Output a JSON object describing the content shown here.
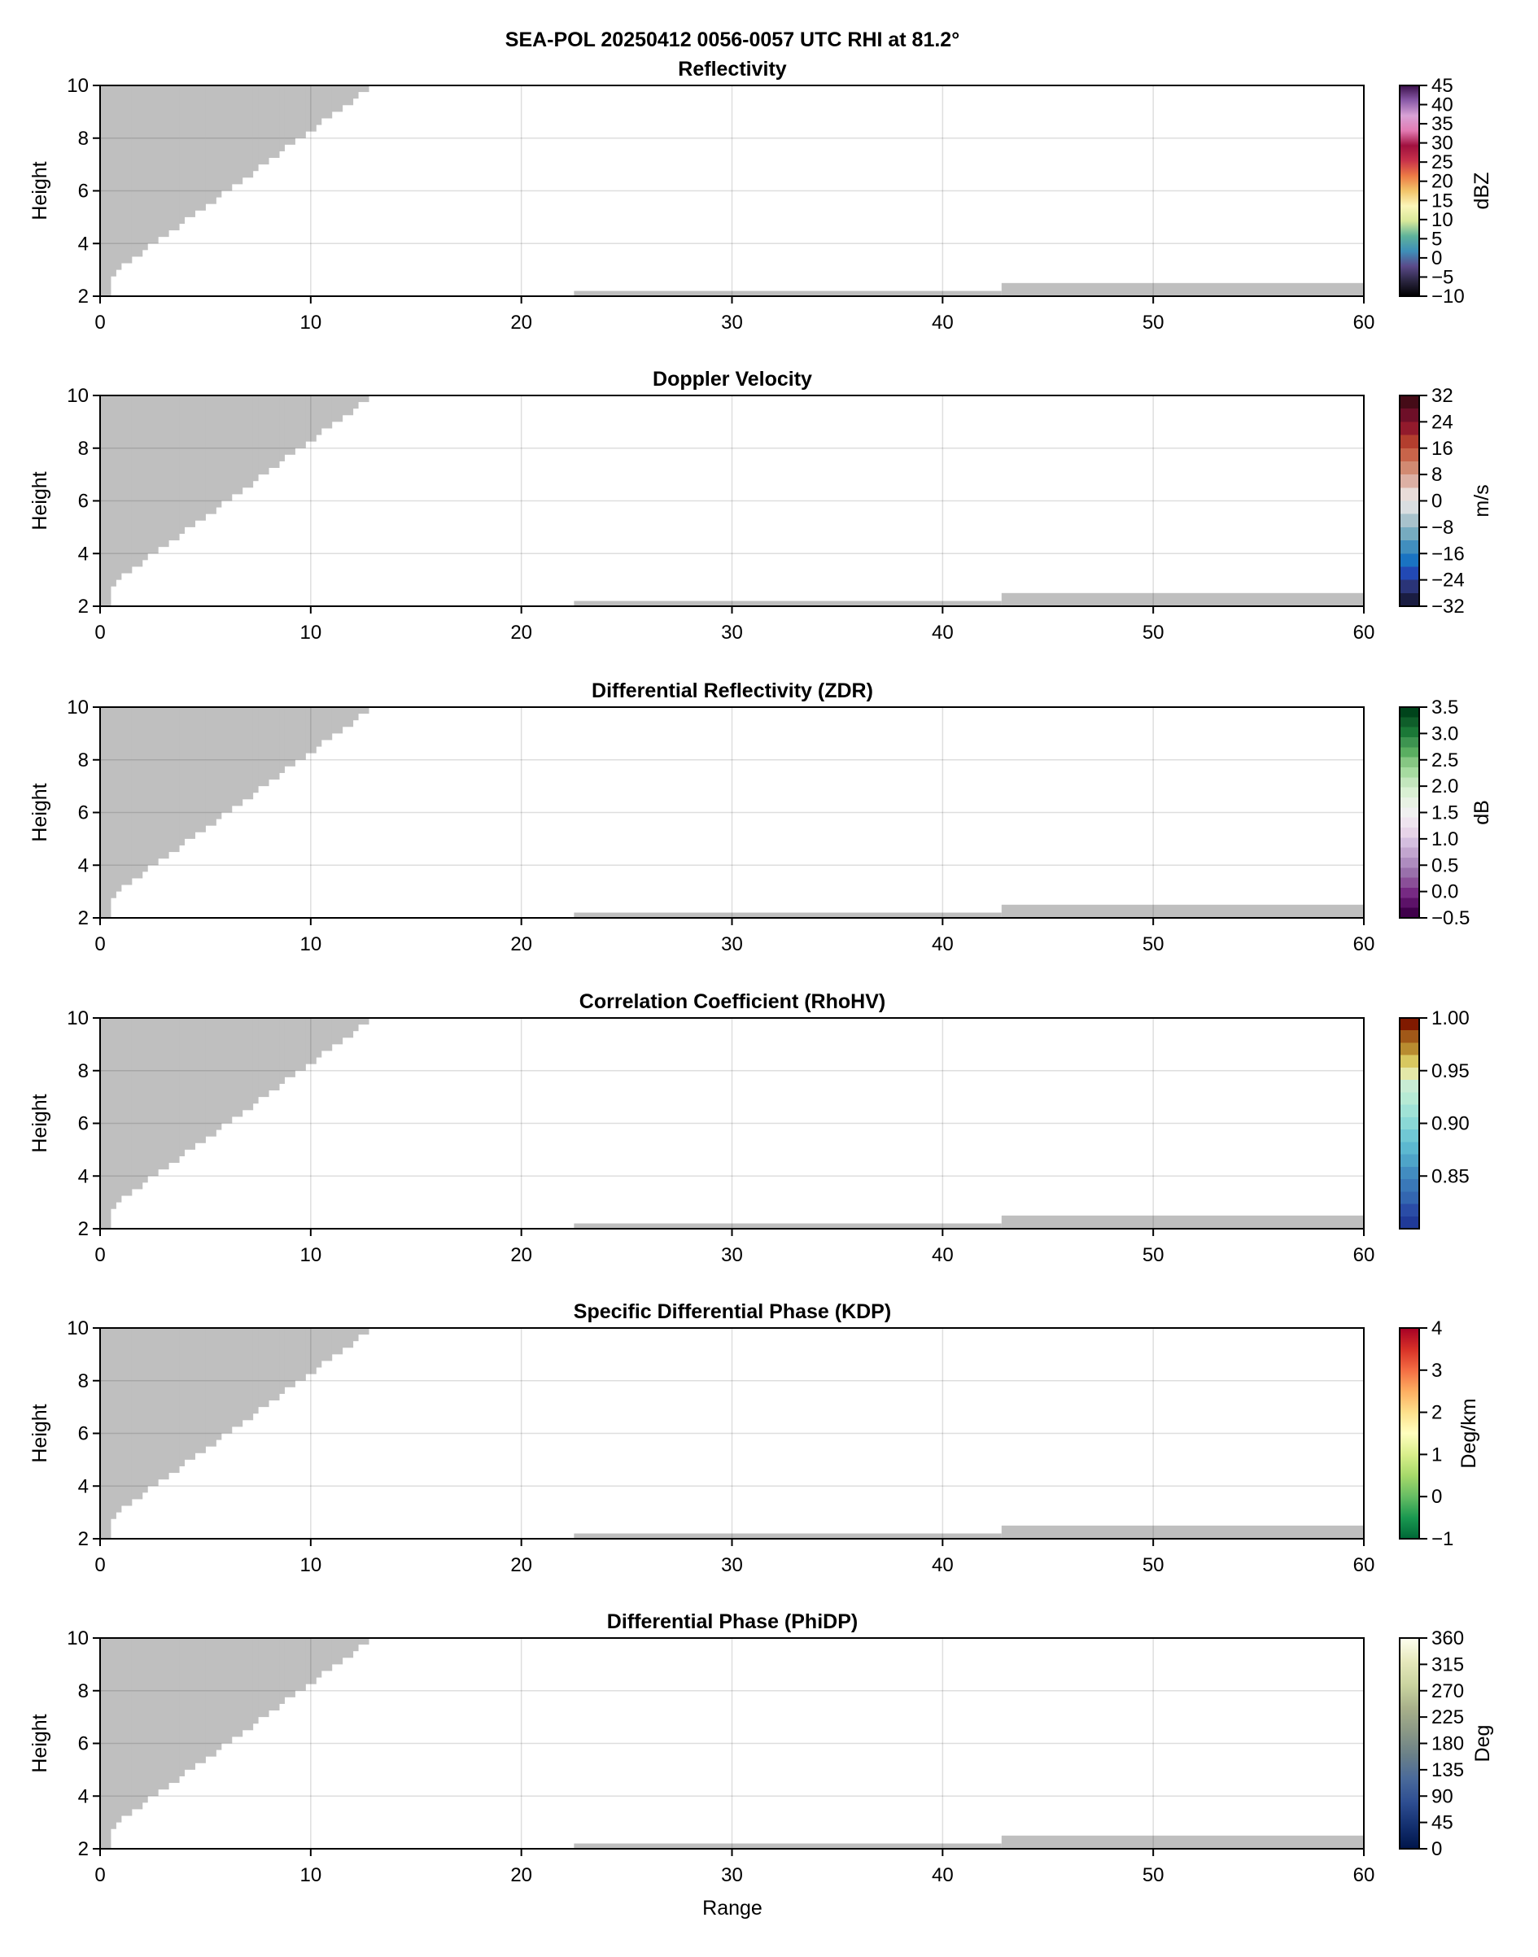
{
  "suptitle": "SEA-POL 20250412 0056-0057 UTC RHI at 81.2°",
  "colors": {
    "no_data_mask": "#bfbfbf",
    "grid": "#dcdcdc",
    "axes": "#000000"
  },
  "chart_data": [
    {
      "type": "heatmap",
      "title": "Reflectivity",
      "xlabel": "",
      "ylabel": "Height",
      "xlim": [
        0,
        60
      ],
      "ylim": [
        2,
        10
      ],
      "xticks": [
        0,
        10,
        20,
        30,
        40,
        50,
        60
      ],
      "yticks": [
        2,
        4,
        6,
        8,
        10
      ],
      "grid": true,
      "colorbar": {
        "label": "dBZ",
        "vmin": -10,
        "vmax": 45,
        "ticks": [
          -10,
          -5,
          0,
          5,
          10,
          15,
          20,
          25,
          30,
          35,
          40,
          45
        ],
        "tick_labels": [
          "−10",
          "−5",
          "0",
          "5",
          "10",
          "15",
          "20",
          "25",
          "30",
          "35",
          "40",
          "45"
        ],
        "colors": [
          "#000000",
          "#2a2540",
          "#5a4a8a",
          "#3e8fb8",
          "#5fb39a",
          "#d8e89a",
          "#fbf6b8",
          "#f2c46a",
          "#ec7a45",
          "#c8324a",
          "#a0103e",
          "#e27bb3",
          "#d8a2d6",
          "#8a5aa8",
          "#3a0f4a"
        ],
        "discrete": false
      }
    },
    {
      "type": "heatmap",
      "title": "Doppler Velocity",
      "xlabel": "",
      "ylabel": "Height",
      "xlim": [
        0,
        60
      ],
      "ylim": [
        2,
        10
      ],
      "xticks": [
        0,
        10,
        20,
        30,
        40,
        50,
        60
      ],
      "yticks": [
        2,
        4,
        6,
        8,
        10
      ],
      "grid": true,
      "colorbar": {
        "label": "m/s",
        "vmin": -32,
        "vmax": 32,
        "ticks": [
          -32,
          -24,
          -16,
          -8,
          0,
          8,
          16,
          24,
          32
        ],
        "tick_labels": [
          "−32",
          "−24",
          "−16",
          "−8",
          "0",
          "8",
          "16",
          "24",
          "32"
        ],
        "colors": [
          "#1a1d42",
          "#2a3478",
          "#2249b4",
          "#1a73c2",
          "#418ebe",
          "#76abc0",
          "#a8c2cc",
          "#d9dde0",
          "#e9dcd8",
          "#ddb0a4",
          "#d28a72",
          "#c8644a",
          "#b33e2e",
          "#921a2c",
          "#6e0f28",
          "#450b17"
        ],
        "discrete": true
      }
    },
    {
      "type": "heatmap",
      "title": "Differential Reflectivity (ZDR)",
      "xlabel": "",
      "ylabel": "Height",
      "xlim": [
        0,
        60
      ],
      "ylim": [
        2,
        10
      ],
      "xticks": [
        0,
        10,
        20,
        30,
        40,
        50,
        60
      ],
      "yticks": [
        2,
        4,
        6,
        8,
        10
      ],
      "grid": true,
      "colorbar": {
        "label": "dB",
        "vmin": -0.5,
        "vmax": 3.5,
        "ticks": [
          -0.5,
          0,
          0.5,
          1,
          1.5,
          2,
          2.5,
          3,
          3.5
        ],
        "tick_labels": [
          "−0.5",
          "0.0",
          "0.5",
          "1.0",
          "1.5",
          "2.0",
          "2.5",
          "3.0",
          "3.5"
        ],
        "colors": [
          "#40004b",
          "#5c1268",
          "#762a83",
          "#8a4f98",
          "#9970ab",
          "#ae8cbf",
          "#c2a5cf",
          "#d4bedf",
          "#e7d4e8",
          "#efe4ef",
          "#f0f0f0",
          "#e8f2e4",
          "#d9f0d3",
          "#c3e6bd",
          "#a6dba0",
          "#86c783",
          "#5aae61",
          "#3d9450",
          "#1b7837",
          "#0f5e2a",
          "#00441b"
        ],
        "discrete": true
      }
    },
    {
      "type": "heatmap",
      "title": "Correlation Coefficient (RhoHV)",
      "xlabel": "",
      "ylabel": "Height",
      "xlim": [
        0,
        60
      ],
      "ylim": [
        2,
        10
      ],
      "xticks": [
        0,
        10,
        20,
        30,
        40,
        50,
        60
      ],
      "yticks": [
        2,
        4,
        6,
        8,
        10
      ],
      "grid": true,
      "colorbar": {
        "label": "",
        "vmin": 0.8,
        "vmax": 1.0,
        "ticks": [
          0.85,
          0.9,
          0.95,
          1.0
        ],
        "tick_labels": [
          "0.85",
          "0.90",
          "0.95",
          "1.00"
        ],
        "colors": [
          "#203a98",
          "#2a4ca6",
          "#3366b0",
          "#3a78b8",
          "#428cc0",
          "#4ea4c8",
          "#5cb8d0",
          "#70c8d4",
          "#8ad8d6",
          "#a0e2d6",
          "#b6ead4",
          "#c8ecd4",
          "#e4e8a8",
          "#d8c860",
          "#b88c30",
          "#a05818",
          "#801a00"
        ],
        "discrete": true
      }
    },
    {
      "type": "heatmap",
      "title": "Specific Differential Phase (KDP)",
      "xlabel": "",
      "ylabel": "Height",
      "xlim": [
        0,
        60
      ],
      "ylim": [
        2,
        10
      ],
      "xticks": [
        0,
        10,
        20,
        30,
        40,
        50,
        60
      ],
      "yticks": [
        2,
        4,
        6,
        8,
        10
      ],
      "grid": true,
      "colorbar": {
        "label": "Deg/km",
        "vmin": -1,
        "vmax": 4,
        "ticks": [
          -1,
          0,
          1,
          2,
          3,
          4
        ],
        "tick_labels": [
          "−1",
          "0",
          "1",
          "2",
          "3",
          "4"
        ],
        "colors": [
          "#006837",
          "#1a9850",
          "#66bd63",
          "#a6d96a",
          "#d9ef8b",
          "#ffffbf",
          "#fee08b",
          "#fdae61",
          "#f46d43",
          "#d73027",
          "#a50026"
        ],
        "discrete": false
      }
    },
    {
      "type": "heatmap",
      "title": "Differential Phase (PhiDP)",
      "xlabel": "Range",
      "ylabel": "Height",
      "xlim": [
        0,
        60
      ],
      "ylim": [
        2,
        10
      ],
      "xticks": [
        0,
        10,
        20,
        30,
        40,
        50,
        60
      ],
      "yticks": [
        2,
        4,
        6,
        8,
        10
      ],
      "grid": true,
      "colorbar": {
        "label": "Deg",
        "vmin": 0,
        "vmax": 360,
        "ticks": [
          0,
          45,
          90,
          135,
          180,
          225,
          270,
          315,
          360
        ],
        "tick_labels": [
          "0",
          "45",
          "90",
          "135",
          "180",
          "225",
          "270",
          "315",
          "360"
        ],
        "colors": [
          "#00154a",
          "#143070",
          "#2e4e92",
          "#4a6a9a",
          "#6a8088",
          "#8a9886",
          "#a8b08a",
          "#cad4a0",
          "#e6e8bc",
          "#fffff0"
        ],
        "discrete": false
      }
    }
  ],
  "no_data": {
    "staircase_range_height": [
      [
        0,
        2
      ],
      [
        0.5,
        2.75
      ],
      [
        0.75,
        3
      ],
      [
        1,
        3.25
      ],
      [
        1.5,
        3.5
      ],
      [
        2,
        3.75
      ],
      [
        2.25,
        4
      ],
      [
        2.75,
        4.25
      ],
      [
        3.25,
        4.5
      ],
      [
        3.75,
        4.75
      ],
      [
        4,
        5
      ],
      [
        4.5,
        5.25
      ],
      [
        5,
        5.5
      ],
      [
        5.5,
        5.75
      ],
      [
        5.75,
        6
      ],
      [
        6.25,
        6.25
      ],
      [
        6.75,
        6.5
      ],
      [
        7.25,
        6.75
      ],
      [
        7.5,
        7
      ],
      [
        8,
        7.25
      ],
      [
        8.5,
        7.5
      ],
      [
        8.75,
        7.75
      ],
      [
        9.25,
        8
      ],
      [
        9.75,
        8.25
      ],
      [
        10.25,
        8.5
      ],
      [
        10.5,
        8.75
      ],
      [
        11,
        9
      ],
      [
        11.5,
        9.25
      ],
      [
        12,
        9.5
      ],
      [
        12.25,
        9.75
      ],
      [
        12.75,
        10
      ]
    ],
    "ground_strips": [
      {
        "range": [
          22.5,
          42.8
        ],
        "height_top": 2.2
      },
      {
        "range": [
          42.8,
          60
        ],
        "height_top": 2.5
      }
    ]
  }
}
